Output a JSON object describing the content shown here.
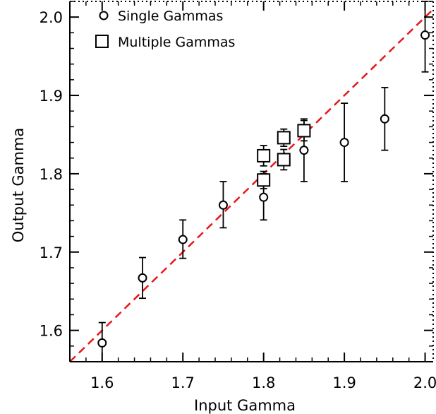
{
  "chart_data": {
    "type": "scatter",
    "xlabel": "Input Gamma",
    "ylabel": "Output Gamma",
    "xlim": [
      1.56,
      2.01
    ],
    "ylim": [
      1.56,
      2.02
    ],
    "xticks": [
      1.6,
      1.7,
      1.8,
      1.9,
      2.0
    ],
    "xtick_labels": [
      "1.6",
      "1.7",
      "1.8",
      "1.9",
      "2.0"
    ],
    "yticks": [
      1.6,
      1.7,
      1.8,
      1.9,
      2.0
    ],
    "ytick_labels": [
      "1.6",
      "1.7",
      "1.8",
      "1.9",
      "2.0"
    ],
    "reference_line": {
      "style": "dashed",
      "color": "#e8161b",
      "slope": 1,
      "intercept": 0
    },
    "legend_position": "top-left",
    "series": [
      {
        "name": "Single Gammas",
        "marker": "circle",
        "x": [
          1.6,
          1.65,
          1.7,
          1.75,
          1.8,
          1.85,
          1.9,
          1.95,
          2.0
        ],
        "y": [
          1.584,
          1.667,
          1.716,
          1.76,
          1.77,
          1.83,
          1.84,
          1.87,
          1.977
        ],
        "yerr_low": [
          1.56,
          1.641,
          1.692,
          1.731,
          1.741,
          1.79,
          1.79,
          1.83,
          1.93
        ],
        "yerr_high": [
          1.61,
          1.693,
          1.741,
          1.79,
          1.8,
          1.87,
          1.89,
          1.91,
          2.02
        ]
      },
      {
        "name": "Multiple Gammas",
        "marker": "square",
        "x": [
          1.8,
          1.8,
          1.825,
          1.825,
          1.85
        ],
        "y": [
          1.792,
          1.823,
          1.818,
          1.846,
          1.855
        ],
        "yerr_low": [
          1.781,
          1.81,
          1.805,
          1.835,
          1.842
        ],
        "yerr_high": [
          1.803,
          1.836,
          1.831,
          1.857,
          1.868
        ]
      }
    ]
  }
}
